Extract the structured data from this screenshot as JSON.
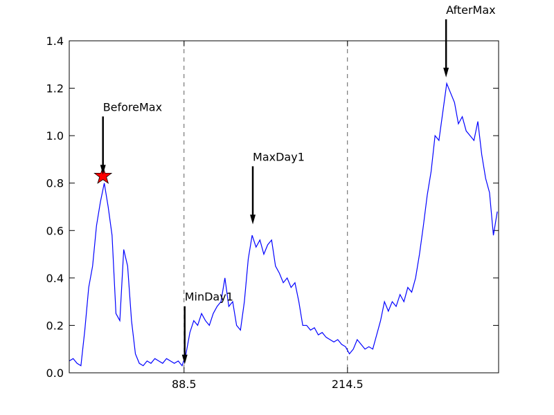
{
  "chart_data": {
    "type": "line",
    "x": [
      0,
      3,
      6,
      9,
      12,
      15,
      18,
      21,
      24,
      27,
      30,
      33,
      36,
      39,
      42,
      45,
      48,
      51,
      54,
      57,
      60,
      63,
      66,
      69,
      72,
      75,
      78,
      81,
      84,
      87,
      90,
      93,
      96,
      99,
      102,
      105,
      108,
      111,
      114,
      117,
      120,
      123,
      126,
      129,
      132,
      135,
      138,
      141,
      144,
      147,
      150,
      153,
      156,
      159,
      162,
      165,
      168,
      171,
      174,
      177,
      180,
      183,
      186,
      189,
      192,
      195,
      198,
      201,
      204,
      207,
      210,
      213,
      216,
      219,
      222,
      225,
      228,
      231,
      234,
      237,
      240,
      243,
      246,
      249,
      252,
      255,
      258,
      261,
      264,
      267,
      270,
      273,
      276,
      279,
      282,
      285,
      288,
      291,
      294,
      297,
      300,
      303,
      306,
      309,
      312,
      315,
      318,
      321,
      324,
      327,
      330
    ],
    "series": [
      {
        "color": "#0000ff",
        "values": [
          0.05,
          0.06,
          0.04,
          0.03,
          0.18,
          0.36,
          0.45,
          0.62,
          0.72,
          0.8,
          0.7,
          0.58,
          0.25,
          0.22,
          0.52,
          0.45,
          0.22,
          0.08,
          0.04,
          0.03,
          0.05,
          0.04,
          0.06,
          0.05,
          0.04,
          0.06,
          0.05,
          0.04,
          0.05,
          0.03,
          0.08,
          0.17,
          0.22,
          0.2,
          0.25,
          0.22,
          0.2,
          0.25,
          0.28,
          0.3,
          0.4,
          0.28,
          0.3,
          0.2,
          0.18,
          0.3,
          0.48,
          0.58,
          0.53,
          0.56,
          0.5,
          0.54,
          0.56,
          0.45,
          0.42,
          0.38,
          0.4,
          0.36,
          0.38,
          0.3,
          0.2,
          0.2,
          0.18,
          0.19,
          0.16,
          0.17,
          0.15,
          0.14,
          0.13,
          0.14,
          0.12,
          0.11,
          0.08,
          0.1,
          0.14,
          0.12,
          0.1,
          0.11,
          0.1,
          0.16,
          0.22,
          0.3,
          0.26,
          0.3,
          0.28,
          0.33,
          0.3,
          0.36,
          0.34,
          0.4,
          0.5,
          0.62,
          0.75,
          0.85,
          1.0,
          0.98,
          1.1,
          1.22,
          1.18,
          1.14,
          1.05,
          1.08,
          1.02,
          1.0,
          0.98,
          1.06,
          0.92,
          0.82,
          0.76,
          0.58,
          0.68
        ]
      }
    ],
    "xlim": [
      0,
      331
    ],
    "ylim": [
      0,
      1.4
    ],
    "xticks": [
      88.5,
      214.5
    ],
    "yticks": [
      {
        "value": 0,
        "label": "0.0"
      },
      0.2,
      0.4,
      0.6,
      0.8,
      {
        "value": 1,
        "label": "1.0"
      },
      1.2,
      1.4
    ],
    "grid_x": true,
    "annotations": [
      {
        "text": "BeforeMax",
        "x": 26,
        "y": 0.83
      },
      {
        "text": "MinDay1",
        "x": 89,
        "y": 0.03
      },
      {
        "text": "MaxDay1",
        "x": 141.5,
        "y": 0.62
      },
      {
        "text": "AfterMax",
        "x": 290.5,
        "y": 1.24
      }
    ],
    "highlight": {
      "x": 26,
      "y": 0.83,
      "color": "#ff0000"
    }
  }
}
